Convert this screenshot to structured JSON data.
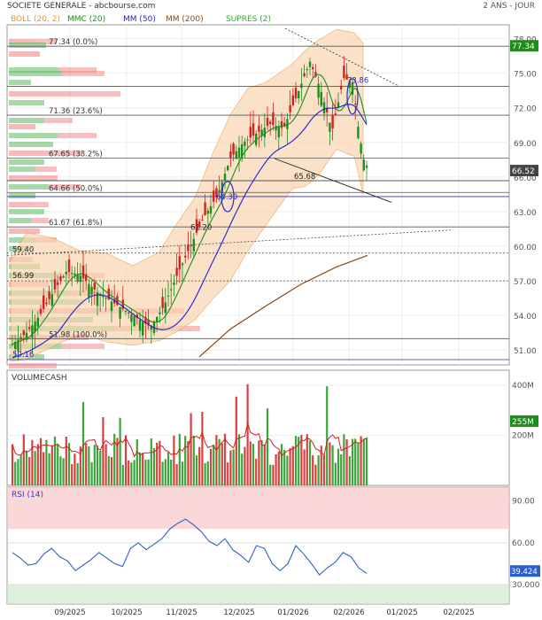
{
  "header": {
    "title": "SOCIETE GENERALE - abcbourse.com",
    "period": "2 ANS - JOUR",
    "legend": [
      {
        "label": "BOLL (20, 2)",
        "color": "#e8923a"
      },
      {
        "label": "MMC (20)",
        "color": "#1b8f1b"
      },
      {
        "label": "MM (50)",
        "color": "#1f1fd0"
      },
      {
        "label": "MM (200)",
        "color": "#8b4513"
      },
      {
        "label": "SUPRES (2)",
        "color": "#3aa63a"
      }
    ]
  },
  "chart_data": [
    {
      "type": "candlestick",
      "panel": "price",
      "yticks": [
        51,
        54,
        57,
        60,
        63,
        66,
        69,
        72,
        75,
        78
      ],
      "ylim": [
        49.7,
        79.2
      ],
      "xticks": [
        "09/2025",
        "10/2025",
        "11/2025",
        "12/2025",
        "01/2026",
        "02/2026",
        "01/2025",
        "02/2025"
      ],
      "last_price": "77.34",
      "current_price": "66.52",
      "fib_levels": [
        {
          "label": "77.34  (0.0%)",
          "value": 77.34
        },
        {
          "label": "71.36  (23.6%)",
          "value": 71.36
        },
        {
          "label": "67.65  (38.2%)",
          "value": 67.65
        },
        {
          "label": "64.66  (50.0%)",
          "value": 64.66
        },
        {
          "label": "61.67  (61.8%)",
          "value": 61.67
        },
        {
          "label": "51.98  (100.0%)",
          "value": 51.98
        }
      ],
      "support_resistance": [
        {
          "label": "59.40",
          "value": 59.4
        },
        {
          "label": "56.99",
          "value": 56.99
        },
        {
          "label": "61.20",
          "value": 61.2
        },
        {
          "label": "64.30",
          "value": 64.3
        },
        {
          "label": "65.68",
          "value": 65.68
        },
        {
          "label": "73.86",
          "value": 73.86
        },
        {
          "label": "50.16",
          "value": 50.16
        }
      ],
      "ma200_range": [
        50.5,
        58.9
      ],
      "series": [
        {
          "date": "08/2025",
          "open": 51.2,
          "high": 52.1,
          "low": 50.5,
          "close": 51.9
        },
        {
          "date": "09/2025",
          "open": 52.0,
          "high": 59.0,
          "low": 51.8,
          "close": 57.5
        },
        {
          "date": "09/2025",
          "open": 57.3,
          "high": 58.4,
          "low": 55.4,
          "close": 56.2
        },
        {
          "date": "10/2025",
          "open": 56.3,
          "high": 57.2,
          "low": 53.1,
          "close": 54.0
        },
        {
          "date": "10/2025",
          "open": 54.1,
          "high": 55.5,
          "low": 51.9,
          "close": 53.6
        },
        {
          "date": "11/2025",
          "open": 53.6,
          "high": 60.2,
          "low": 53.2,
          "close": 59.5
        },
        {
          "date": "11/2025",
          "open": 59.4,
          "high": 64.1,
          "low": 59.0,
          "close": 63.5
        },
        {
          "date": "12/2025",
          "open": 63.4,
          "high": 69.3,
          "low": 63.0,
          "close": 68.7
        },
        {
          "date": "12/2025",
          "open": 68.6,
          "high": 71.6,
          "low": 67.8,
          "close": 70.4
        },
        {
          "date": "01/2026",
          "open": 70.3,
          "high": 77.2,
          "low": 69.5,
          "close": 74.2
        },
        {
          "date": "01/2026",
          "open": 74.1,
          "high": 76.0,
          "low": 71.2,
          "close": 73.8
        },
        {
          "date": "02/2026",
          "open": 73.9,
          "high": 76.3,
          "low": 67.4,
          "close": 70.9
        },
        {
          "date": "02/2026",
          "open": 70.8,
          "high": 71.2,
          "low": 65.5,
          "close": 66.5
        }
      ]
    },
    {
      "type": "bar",
      "panel": "volume",
      "title": "VOLUMECASH",
      "yticks": [
        "400M",
        "200M"
      ],
      "current": "255M",
      "ylim": [
        0,
        460
      ]
    },
    {
      "type": "line",
      "panel": "rsi",
      "title": "RSI (14)",
      "yticks": [
        "90.00",
        "60.00",
        "30.000"
      ],
      "levels": [
        70,
        30
      ],
      "current": "39.424",
      "ylim": [
        16,
        100
      ],
      "values": [
        53,
        49,
        44,
        45,
        52,
        56,
        50,
        47,
        40,
        44,
        48,
        53,
        49,
        45,
        43,
        56,
        60,
        55,
        59,
        63,
        70,
        74,
        77,
        73,
        68,
        61,
        58,
        63,
        55,
        51,
        46,
        58,
        56,
        45,
        40,
        45,
        58,
        52,
        45,
        37,
        42,
        46,
        53,
        50,
        42,
        38
      ]
    }
  ]
}
